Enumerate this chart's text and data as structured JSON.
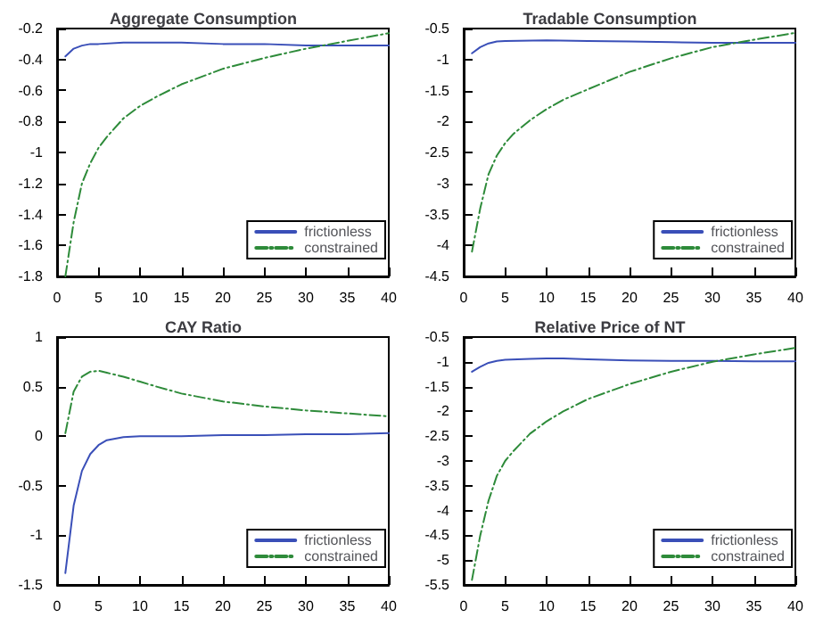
{
  "chart_data": [
    {
      "type": "line",
      "title": "Aggregate Consumption",
      "xlim": [
        0,
        40
      ],
      "xticks": [
        0,
        5,
        10,
        15,
        20,
        25,
        30,
        35,
        40
      ],
      "ylim": [
        -1.8,
        -0.2
      ],
      "yticks": [
        -1.8,
        -1.6,
        -1.4,
        -1.2,
        -1,
        -0.8,
        -0.6,
        -0.4,
        -0.2
      ],
      "grid": false,
      "legend": "bottom right",
      "series": [
        {
          "name": "frictionless",
          "color": "#3a4fb8",
          "line_style": "solid",
          "x": [
            1,
            2,
            3,
            4,
            5,
            8,
            10,
            15,
            20,
            25,
            30,
            35,
            40
          ],
          "values": [
            -0.38,
            -0.33,
            -0.31,
            -0.3,
            -0.3,
            -0.29,
            -0.29,
            -0.29,
            -0.3,
            -0.3,
            -0.31,
            -0.31,
            -0.31
          ]
        },
        {
          "name": "constrained",
          "color": "#2e8b3a",
          "line_style": "dashed",
          "x": [
            1,
            2,
            3,
            4,
            5,
            6,
            8,
            10,
            12,
            15,
            20,
            25,
            30,
            35,
            40
          ],
          "values": [
            -1.8,
            -1.45,
            -1.2,
            -1.07,
            -0.97,
            -0.9,
            -0.78,
            -0.7,
            -0.64,
            -0.56,
            -0.46,
            -0.39,
            -0.33,
            -0.28,
            -0.23
          ]
        }
      ]
    },
    {
      "type": "line",
      "title": "Tradable Consumption",
      "xlim": [
        0,
        40
      ],
      "xticks": [
        0,
        5,
        10,
        15,
        20,
        25,
        30,
        35,
        40
      ],
      "ylim": [
        -4.5,
        -0.5
      ],
      "yticks": [
        -4.5,
        -4,
        -3.5,
        -3,
        -2.5,
        -2,
        -1.5,
        -1,
        -0.5
      ],
      "grid": false,
      "legend": "bottom right",
      "series": [
        {
          "name": "frictionless",
          "color": "#3a4fb8",
          "line_style": "solid",
          "x": [
            1,
            2,
            3,
            4,
            5,
            10,
            15,
            20,
            25,
            30,
            35,
            40
          ],
          "values": [
            -0.9,
            -0.8,
            -0.74,
            -0.71,
            -0.7,
            -0.69,
            -0.7,
            -0.71,
            -0.72,
            -0.73,
            -0.73,
            -0.73
          ]
        },
        {
          "name": "constrained",
          "color": "#2e8b3a",
          "line_style": "dashed",
          "x": [
            1,
            2,
            3,
            4,
            5,
            6,
            8,
            10,
            12,
            15,
            20,
            25,
            30,
            35,
            40
          ],
          "values": [
            -4.1,
            -3.4,
            -2.85,
            -2.55,
            -2.35,
            -2.2,
            -1.98,
            -1.8,
            -1.65,
            -1.48,
            -1.2,
            -0.98,
            -0.8,
            -0.68,
            -0.57
          ]
        }
      ]
    },
    {
      "type": "line",
      "title": "CAY Ratio",
      "xlim": [
        0,
        40
      ],
      "xticks": [
        0,
        5,
        10,
        15,
        20,
        25,
        30,
        35,
        40
      ],
      "ylim": [
        -1.5,
        1
      ],
      "yticks": [
        -1.5,
        -1,
        -0.5,
        0,
        0.5,
        1
      ],
      "grid": false,
      "legend": "bottom right",
      "series": [
        {
          "name": "frictionless",
          "color": "#3a4fb8",
          "line_style": "solid",
          "x": [
            1,
            2,
            3,
            4,
            5,
            6,
            8,
            10,
            15,
            20,
            25,
            30,
            35,
            40
          ],
          "values": [
            -1.38,
            -0.7,
            -0.35,
            -0.18,
            -0.09,
            -0.04,
            -0.01,
            0,
            0,
            0.01,
            0.01,
            0.02,
            0.02,
            0.03
          ]
        },
        {
          "name": "constrained",
          "color": "#2e8b3a",
          "line_style": "dashed",
          "x": [
            1,
            2,
            3,
            4,
            5,
            6,
            8,
            10,
            12,
            15,
            20,
            25,
            30,
            35,
            40
          ],
          "values": [
            0.03,
            0.45,
            0.6,
            0.65,
            0.66,
            0.64,
            0.6,
            0.55,
            0.5,
            0.43,
            0.35,
            0.3,
            0.26,
            0.23,
            0.2
          ]
        }
      ]
    },
    {
      "type": "line",
      "title": "Relative Price of NT",
      "xlim": [
        0,
        40
      ],
      "xticks": [
        0,
        5,
        10,
        15,
        20,
        25,
        30,
        35,
        40
      ],
      "ylim": [
        -5.5,
        -0.5
      ],
      "yticks": [
        -5.5,
        -5,
        -4.5,
        -4,
        -3.5,
        -3,
        -2.5,
        -2,
        -1.5,
        -1,
        -0.5
      ],
      "grid": false,
      "legend": "bottom right",
      "series": [
        {
          "name": "frictionless",
          "color": "#3a4fb8",
          "line_style": "solid",
          "x": [
            1,
            2,
            3,
            4,
            5,
            8,
            10,
            12,
            15,
            20,
            25,
            30,
            35,
            40
          ],
          "values": [
            -1.2,
            -1.1,
            -1.02,
            -0.98,
            -0.96,
            -0.94,
            -0.93,
            -0.93,
            -0.95,
            -0.97,
            -0.98,
            -0.98,
            -0.99,
            -0.99
          ]
        },
        {
          "name": "constrained",
          "color": "#2e8b3a",
          "line_style": "dashed",
          "x": [
            1,
            2,
            3,
            4,
            5,
            6,
            8,
            10,
            12,
            15,
            20,
            25,
            30,
            35,
            40
          ],
          "values": [
            -5.4,
            -4.5,
            -3.8,
            -3.3,
            -3,
            -2.8,
            -2.45,
            -2.2,
            -2,
            -1.75,
            -1.45,
            -1.2,
            -1,
            -0.85,
            -0.72
          ]
        }
      ]
    }
  ]
}
